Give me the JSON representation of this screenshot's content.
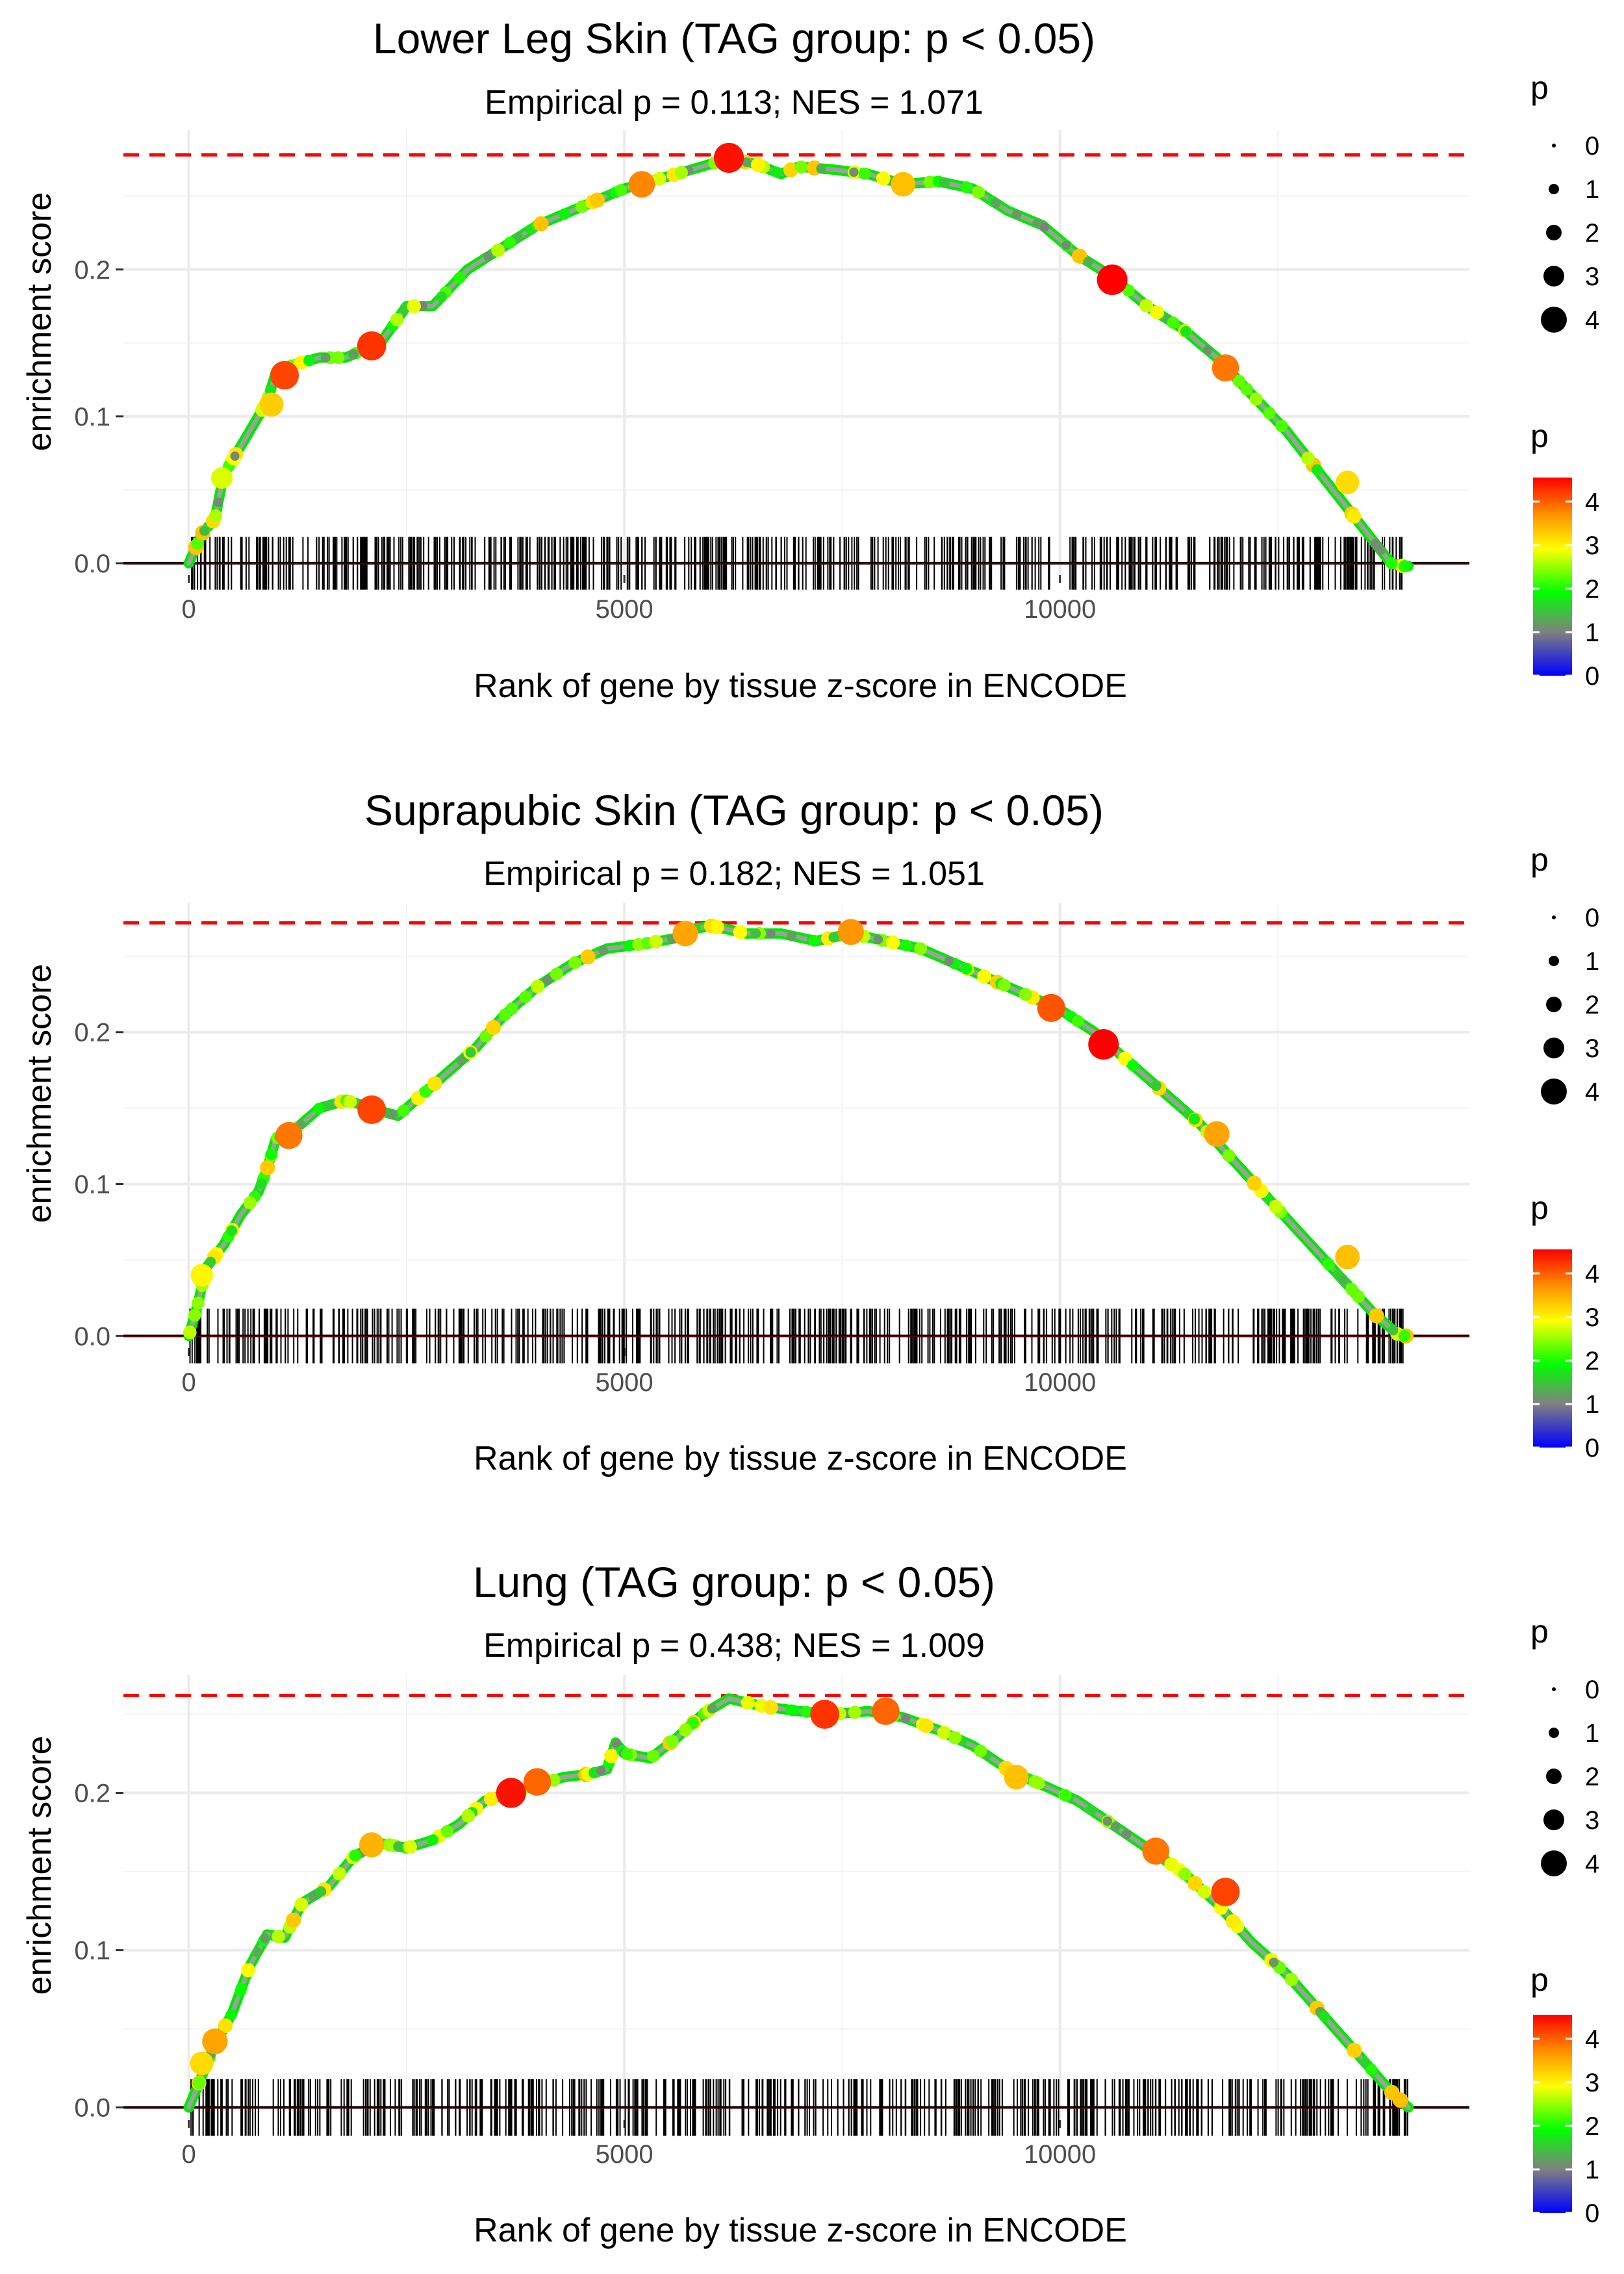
{
  "colors": {
    "gradient": [
      "#0000ff",
      "#808080",
      "#00ff00",
      "#ffff00",
      "#ff8c00",
      "#ff0000"
    ],
    "max_line": "#ff0000",
    "grid": "#ebebeb",
    "tick_marks": "#000000"
  },
  "chart_data": [
    {
      "type": "line",
      "title": "Lower Leg Skin (TAG group: p < 0.05)",
      "subtitle": "Empirical p = 0.113; NES = 1.071",
      "xlabel": "Rank of gene by tissue z-score in ENCODE",
      "ylabel": "enrichment score",
      "xlim": [
        -750,
        14700
      ],
      "ylim": [
        -0.008,
        0.295
      ],
      "x_ticks": [
        0,
        5000,
        10000
      ],
      "x_tick_labels": [
        "0",
        "5000",
        "10000"
      ],
      "y_ticks": [
        0.0,
        0.1,
        0.2
      ],
      "y_tick_labels": [
        "0.0",
        "0.1",
        "0.2"
      ],
      "max_es": 0.278,
      "n_genes": 14000,
      "series": [
        {
          "name": "running enrichment score",
          "x": [
            0,
            150,
            300,
            400,
            500,
            700,
            900,
            1000,
            1200,
            1500,
            1800,
            2000,
            2200,
            2500,
            2800,
            3200,
            3600,
            4000,
            4400,
            4800,
            5000,
            5300,
            5600,
            6000,
            6200,
            6500,
            6800,
            7000,
            7400,
            7800,
            8200,
            8600,
            9000,
            9400,
            9800,
            10200,
            10600,
            11000,
            11400,
            11800,
            12200,
            12600,
            13000,
            13400,
            13800,
            13950,
            14000
          ],
          "y": [
            0.0,
            0.02,
            0.03,
            0.06,
            0.07,
            0.09,
            0.11,
            0.13,
            0.135,
            0.14,
            0.14,
            0.145,
            0.15,
            0.175,
            0.175,
            0.2,
            0.215,
            0.23,
            0.24,
            0.25,
            0.255,
            0.26,
            0.265,
            0.272,
            0.275,
            0.272,
            0.265,
            0.27,
            0.268,
            0.265,
            0.258,
            0.26,
            0.255,
            0.24,
            0.23,
            0.21,
            0.195,
            0.175,
            0.16,
            0.14,
            0.115,
            0.09,
            0.06,
            0.03,
            0.0,
            -0.002,
            -0.002
          ]
        }
      ],
      "highlight_points": [
        {
          "x": 380,
          "y": 0.058,
          "p": 2.8
        },
        {
          "x": 950,
          "y": 0.108,
          "p": 3.3
        },
        {
          "x": 1100,
          "y": 0.128,
          "p": 4.2
        },
        {
          "x": 2100,
          "y": 0.148,
          "p": 4.3
        },
        {
          "x": 5200,
          "y": 0.258,
          "p": 3.8
        },
        {
          "x": 6200,
          "y": 0.276,
          "p": 4.5
        },
        {
          "x": 8200,
          "y": 0.258,
          "p": 3.4
        },
        {
          "x": 10600,
          "y": 0.193,
          "p": 4.6
        },
        {
          "x": 11900,
          "y": 0.133,
          "p": 3.9
        },
        {
          "x": 13300,
          "y": 0.055,
          "p": 3.2
        }
      ],
      "legend_size": {
        "title": "p",
        "labels": [
          "0",
          "1",
          "2",
          "3",
          "4"
        ]
      },
      "legend_color": {
        "title": "p",
        "labels": [
          "4",
          "3",
          "2",
          "1",
          "0"
        ]
      }
    },
    {
      "type": "line",
      "title": "Suprapubic Skin (TAG group: p < 0.05)",
      "subtitle": "Empirical p = 0.182; NES = 1.051",
      "xlabel": "Rank of gene by tissue z-score in ENCODE",
      "ylabel": "enrichment score",
      "xlim": [
        -750,
        14700
      ],
      "ylim": [
        -0.008,
        0.285
      ],
      "x_ticks": [
        0,
        5000,
        10000
      ],
      "x_tick_labels": [
        "0",
        "5000",
        "10000"
      ],
      "y_ticks": [
        0.0,
        0.1,
        0.2
      ],
      "y_tick_labels": [
        "0.0",
        "0.1",
        "0.2"
      ],
      "max_es": 0.272,
      "n_genes": 14000,
      "series": [
        {
          "name": "running enrichment score",
          "x": [
            0,
            100,
            200,
            400,
            600,
            800,
            900,
            1000,
            1200,
            1500,
            1800,
            2000,
            2200,
            2400,
            2700,
            3000,
            3300,
            3600,
            4000,
            4400,
            4800,
            5200,
            5600,
            5800,
            6000,
            6400,
            6800,
            7200,
            7600,
            8000,
            8400,
            8800,
            9200,
            9600,
            10000,
            10400,
            10800,
            11200,
            11600,
            12000,
            12400,
            12800,
            13200,
            13600,
            13900,
            14000
          ],
          "y": [
            0.0,
            0.02,
            0.045,
            0.06,
            0.08,
            0.095,
            0.11,
            0.13,
            0.135,
            0.15,
            0.155,
            0.152,
            0.148,
            0.145,
            0.16,
            0.175,
            0.19,
            0.21,
            0.23,
            0.245,
            0.255,
            0.258,
            0.262,
            0.268,
            0.27,
            0.265,
            0.265,
            0.26,
            0.265,
            0.26,
            0.255,
            0.245,
            0.235,
            0.225,
            0.215,
            0.2,
            0.18,
            0.16,
            0.14,
            0.115,
            0.09,
            0.065,
            0.04,
            0.015,
            0.0,
            0.0
          ]
        }
      ],
      "highlight_points": [
        {
          "x": 150,
          "y": 0.04,
          "p": 3.0
        },
        {
          "x": 1150,
          "y": 0.132,
          "p": 3.9
        },
        {
          "x": 2100,
          "y": 0.149,
          "p": 4.2
        },
        {
          "x": 5700,
          "y": 0.265,
          "p": 3.6
        },
        {
          "x": 7600,
          "y": 0.266,
          "p": 3.7
        },
        {
          "x": 9900,
          "y": 0.216,
          "p": 4.1
        },
        {
          "x": 10500,
          "y": 0.192,
          "p": 4.6
        },
        {
          "x": 11800,
          "y": 0.133,
          "p": 3.6
        },
        {
          "x": 13300,
          "y": 0.052,
          "p": 3.4
        }
      ],
      "legend_size": {
        "title": "p",
        "labels": [
          "0",
          "1",
          "2",
          "3",
          "4"
        ]
      },
      "legend_color": {
        "title": "p",
        "labels": [
          "4",
          "3",
          "2",
          "1",
          "0"
        ]
      }
    },
    {
      "type": "line",
      "title": "Lung (TAG group: p < 0.05)",
      "subtitle": "Empirical p = 0.438; NES = 1.009",
      "xlabel": "Rank of gene by tissue z-score in ENCODE",
      "ylabel": "enrichment score",
      "xlim": [
        -750,
        14700
      ],
      "ylim": [
        -0.008,
        0.275
      ],
      "x_ticks": [
        0,
        5000,
        10000
      ],
      "x_tick_labels": [
        "0",
        "5000",
        "10000"
      ],
      "y_ticks": [
        0.0,
        0.1,
        0.2
      ],
      "y_tick_labels": [
        "0.0",
        "0.1",
        "0.2"
      ],
      "max_es": 0.262,
      "n_genes": 14000,
      "series": [
        {
          "name": "running enrichment score",
          "x": [
            0,
            150,
            300,
            500,
            700,
            900,
            1100,
            1300,
            1600,
            1900,
            2200,
            2500,
            2800,
            3100,
            3400,
            3700,
            4000,
            4300,
            4600,
            4800,
            4900,
            5000,
            5300,
            5600,
            5900,
            6200,
            6600,
            7000,
            7400,
            7800,
            8200,
            8600,
            9000,
            9400,
            9800,
            10200,
            10600,
            11000,
            11400,
            11800,
            12200,
            12600,
            13000,
            13400,
            13800,
            14000
          ],
          "y": [
            0.0,
            0.02,
            0.04,
            0.06,
            0.09,
            0.11,
            0.108,
            0.13,
            0.14,
            0.16,
            0.168,
            0.165,
            0.17,
            0.18,
            0.195,
            0.2,
            0.205,
            0.21,
            0.212,
            0.215,
            0.232,
            0.225,
            0.222,
            0.235,
            0.25,
            0.26,
            0.255,
            0.252,
            0.25,
            0.252,
            0.248,
            0.24,
            0.23,
            0.215,
            0.205,
            0.195,
            0.18,
            0.165,
            0.15,
            0.13,
            0.105,
            0.085,
            0.06,
            0.035,
            0.01,
            0.0
          ]
        }
      ],
      "highlight_points": [
        {
          "x": 150,
          "y": 0.028,
          "p": 3.2
        },
        {
          "x": 300,
          "y": 0.042,
          "p": 3.6
        },
        {
          "x": 2100,
          "y": 0.167,
          "p": 3.5
        },
        {
          "x": 3700,
          "y": 0.2,
          "p": 4.5
        },
        {
          "x": 4000,
          "y": 0.207,
          "p": 4.0
        },
        {
          "x": 7300,
          "y": 0.25,
          "p": 4.3
        },
        {
          "x": 8000,
          "y": 0.252,
          "p": 4.0
        },
        {
          "x": 9500,
          "y": 0.21,
          "p": 3.4
        },
        {
          "x": 11100,
          "y": 0.163,
          "p": 3.9
        },
        {
          "x": 11900,
          "y": 0.137,
          "p": 4.2
        }
      ],
      "legend_size": {
        "title": "p",
        "labels": [
          "0",
          "1",
          "2",
          "3",
          "4"
        ]
      },
      "legend_color": {
        "title": "p",
        "labels": [
          "4",
          "3",
          "2",
          "1",
          "0"
        ]
      }
    }
  ]
}
